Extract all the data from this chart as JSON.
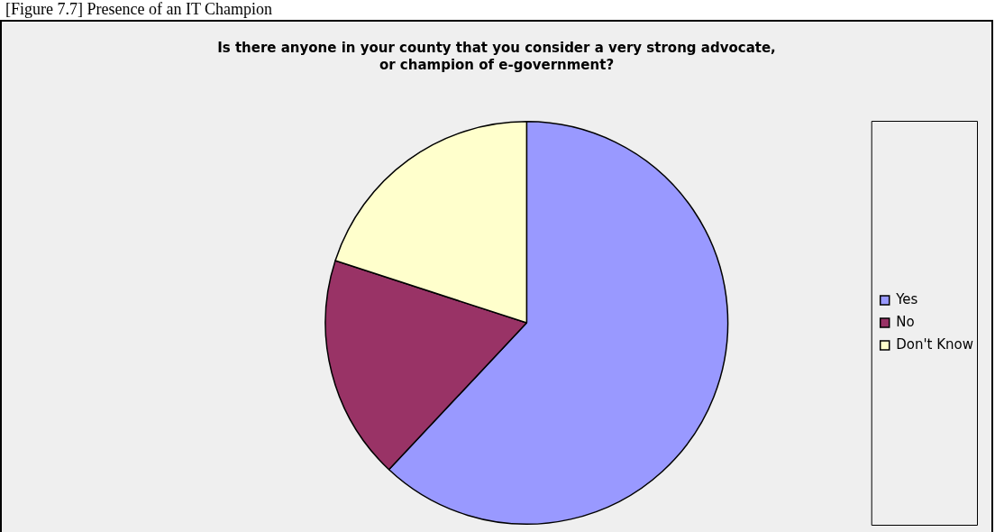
{
  "chart_data": {
    "type": "pie",
    "title": "Is there anyone in your county that you consider a very strong advocate, or champion of e-government?",
    "annotations": [
      "[Figure 7.7] Presence of an IT Champion"
    ],
    "categories": [
      "Yes",
      "No",
      "Don't Know"
    ],
    "values": [
      62,
      18,
      20
    ],
    "colors": [
      "#9999ff",
      "#993366",
      "#ffffcc"
    ],
    "legend": "right"
  }
}
